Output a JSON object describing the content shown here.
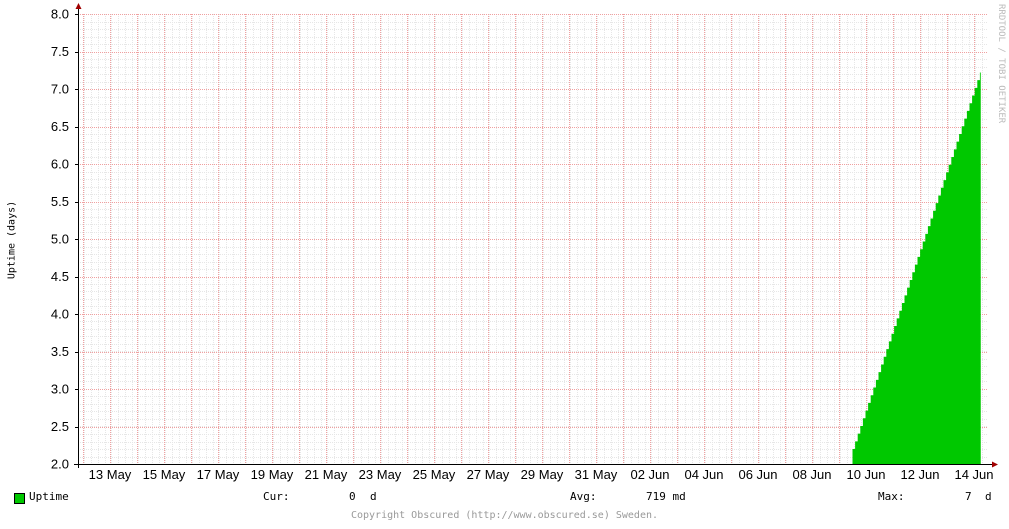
{
  "chart_data": {
    "type": "area",
    "ylabel": "Uptime (days)",
    "watermark": "RRDTOOL / TOBI OETIKER",
    "ylim": [
      2.0,
      8.0
    ],
    "y_ticks": [
      "2.0",
      "2.5",
      "3.0",
      "3.5",
      "4.0",
      "4.5",
      "5.0",
      "5.5",
      "6.0",
      "6.5",
      "7.0",
      "7.5",
      "8.0"
    ],
    "x_ticks": [
      "13 May",
      "15 May",
      "17 May",
      "19 May",
      "21 May",
      "23 May",
      "25 May",
      "27 May",
      "29 May",
      "31 May",
      "02 Jun",
      "04 Jun",
      "06 Jun",
      "08 Jun",
      "10 Jun",
      "12 Jun",
      "14 Jun"
    ],
    "grid": true,
    "series": [
      {
        "name": "Uptime",
        "color": "#00c800",
        "x": [
          "09 Jun 12:00",
          "14 Jun 06:00"
        ],
        "values": [
          2.2,
          7.22
        ]
      }
    ]
  },
  "legend": {
    "series_label": "Uptime",
    "cur_label": "Cur:",
    "cur_value": "0",
    "cur_unit": "d",
    "avg_label": "Avg:",
    "avg_value": "719 md",
    "max_label": "Max:",
    "max_value": "7",
    "max_unit": "d"
  },
  "footer": {
    "copyright": "Copyright Obscured (http://www.obscured.se) Sweden."
  }
}
